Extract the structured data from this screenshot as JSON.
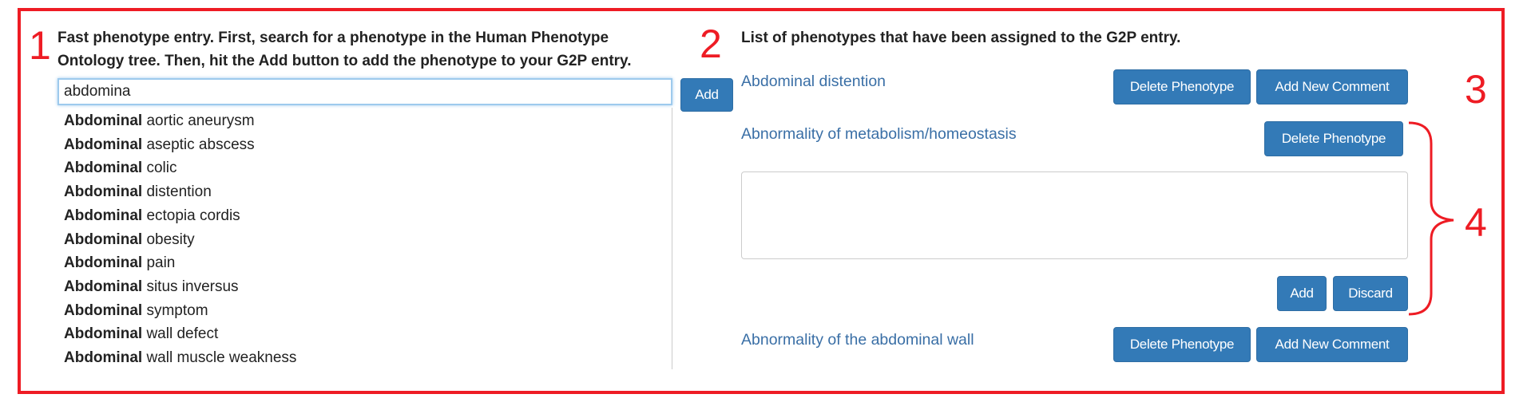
{
  "annotations": {
    "num1": "1",
    "num2": "2",
    "num3": "3",
    "num4": "4"
  },
  "left": {
    "instructions_line1": "Fast phenotype entry. First, search for a phenotype in the Human Phenotype",
    "instructions_line2": "Ontology tree. Then, hit the Add button to add the phenotype to your G2P entry.",
    "search_value": "abdomina",
    "add_label": "Add",
    "suggestions": [
      {
        "match": "Abdominal",
        "rest": " aortic aneurysm"
      },
      {
        "match": "Abdominal",
        "rest": " aseptic abscess"
      },
      {
        "match": "Abdominal",
        "rest": " colic"
      },
      {
        "match": "Abdominal",
        "rest": " distention"
      },
      {
        "match": "Abdominal",
        "rest": " ectopia cordis"
      },
      {
        "match": "Abdominal",
        "rest": " obesity"
      },
      {
        "match": "Abdominal",
        "rest": " pain"
      },
      {
        "match": "Abdominal",
        "rest": " situs inversus"
      },
      {
        "match": "Abdominal",
        "rest": " symptom"
      },
      {
        "match": "Abdominal",
        "rest": " wall defect"
      },
      {
        "match": "Abdominal",
        "rest": " wall muscle weakness"
      }
    ]
  },
  "right": {
    "heading": "List of phenotypes that have been assigned to the G2P entry.",
    "phenotypes": [
      {
        "name": "Abdominal distention",
        "delete_label": "Delete Phenotype",
        "comment_label": "Add New Comment"
      },
      {
        "name": "Abnormality of metabolism/homeostasis",
        "delete_label": "Delete Phenotype"
      },
      {
        "name": "Abnormality of the abdominal wall",
        "delete_label": "Delete Phenotype",
        "comment_label": "Add New Comment"
      }
    ],
    "comment_value": "",
    "comment_add_label": "Add",
    "comment_discard_label": "Discard"
  },
  "colors": {
    "annotation_red": "#ee1c24",
    "button_blue": "#337ab7",
    "link_blue": "#3a6fa6"
  }
}
